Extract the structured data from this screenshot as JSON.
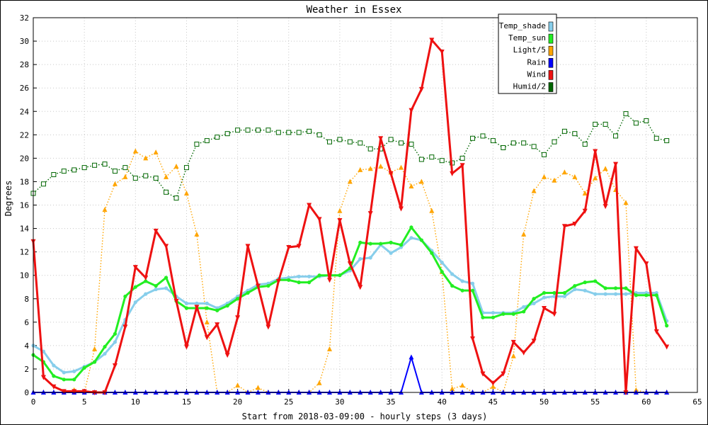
{
  "chart_data": {
    "type": "line",
    "title": "Weather in Essex",
    "xlabel": "Start from 2018-03-09:00 - hourly steps (3 days)",
    "ylabel": "Degrees",
    "xlim": [
      0,
      65
    ],
    "ylim": [
      0,
      32
    ],
    "x_ticks": [
      0,
      5,
      10,
      15,
      20,
      25,
      30,
      35,
      40,
      45,
      50,
      55,
      60,
      65
    ],
    "y_ticks": [
      0,
      2,
      4,
      6,
      8,
      10,
      12,
      14,
      16,
      18,
      20,
      22,
      24,
      26,
      28,
      30,
      32
    ],
    "grid": true,
    "legend_position": "top-right",
    "series": [
      {
        "name": "Temp_shade",
        "color": "#87CEEB",
        "marker": "circle",
        "values": [
          4.0,
          3.5,
          2.3,
          1.7,
          1.8,
          2.2,
          2.6,
          3.3,
          4.3,
          6.2,
          7.7,
          8.4,
          8.8,
          8.9,
          8.2,
          7.6,
          7.6,
          7.6,
          7.2,
          7.6,
          8.2,
          8.7,
          9.2,
          9.3,
          9.7,
          9.8,
          9.9,
          9.9,
          9.9,
          10.0,
          10.0,
          10.4,
          11.4,
          11.5,
          12.6,
          11.9,
          12.4,
          13.2,
          13.0,
          12.1,
          11.1,
          10.1,
          9.5,
          9.3,
          6.8,
          6.8,
          6.8,
          6.8,
          7.3,
          7.6,
          8.1,
          8.2,
          8.2,
          8.8,
          8.7,
          8.4,
          8.4,
          8.4,
          8.4,
          8.5,
          8.5,
          8.5,
          6.1
        ]
      },
      {
        "name": "Temp_sun",
        "color": "#22EE22",
        "marker": "circle",
        "values": [
          3.2,
          2.6,
          1.4,
          1.1,
          1.1,
          2.1,
          2.6,
          3.9,
          5.0,
          8.2,
          9.0,
          9.5,
          9.1,
          9.8,
          7.8,
          7.2,
          7.2,
          7.2,
          7.0,
          7.4,
          8.0,
          8.5,
          9.0,
          9.1,
          9.6,
          9.6,
          9.4,
          9.4,
          10.0,
          10.0,
          10.0,
          10.6,
          12.8,
          12.7,
          12.7,
          12.8,
          12.6,
          14.1,
          13.0,
          11.9,
          10.3,
          9.1,
          8.7,
          8.7,
          6.4,
          6.4,
          6.7,
          6.7,
          6.9,
          8.0,
          8.5,
          8.5,
          8.5,
          9.1,
          9.4,
          9.5,
          8.9,
          8.9,
          8.9,
          8.3,
          8.3,
          8.3,
          5.7
        ]
      },
      {
        "name": "Light/5",
        "color": "#FFA500",
        "marker": "triangle",
        "dotted": true,
        "values": [
          0,
          0,
          0,
          0,
          0.2,
          0,
          3.7,
          15.6,
          17.8,
          18.4,
          20.6,
          20.0,
          20.5,
          18.4,
          19.3,
          17.0,
          13.5,
          6.0,
          0,
          0,
          0.6,
          0,
          0.4,
          0,
          0,
          0,
          0,
          0,
          0.8,
          3.7,
          15.5,
          18.0,
          19.0,
          19.1,
          19.3,
          18.8,
          19.2,
          17.6,
          18.0,
          15.5,
          10.3,
          0.3,
          0.6,
          0,
          0,
          0.5,
          0,
          3.1,
          13.5,
          17.2,
          18.4,
          18.1,
          18.8,
          18.4,
          17.0,
          18.3,
          19.1,
          17.3,
          16.2,
          0.2,
          0,
          0,
          0
        ]
      },
      {
        "name": "Rain",
        "color": "#0000FF",
        "marker": "triangle",
        "values": [
          0,
          0,
          0,
          0,
          0,
          0,
          0,
          0,
          0,
          0,
          0,
          0,
          0,
          0,
          0,
          0,
          0,
          0,
          0,
          0,
          0,
          0,
          0,
          0,
          0,
          0,
          0,
          0,
          0,
          0,
          0,
          0,
          0,
          0,
          0,
          0,
          0,
          3.0,
          0,
          0,
          0,
          0,
          0,
          0,
          0,
          0,
          0,
          0,
          0,
          0,
          0,
          0,
          0,
          0,
          0,
          0,
          0,
          0,
          0,
          0,
          0,
          0,
          0
        ]
      },
      {
        "name": "Wind",
        "color": "#EE1111",
        "marker": "triangle-down",
        "values": [
          12.9,
          1.3,
          0.5,
          0.1,
          0.1,
          0.1,
          0,
          0,
          2.3,
          5.6,
          10.7,
          9.8,
          13.8,
          12.5,
          7.8,
          3.9,
          7.3,
          4.7,
          5.8,
          3.2,
          6.4,
          12.5,
          9.1,
          5.6,
          9.5,
          12.4,
          12.5,
          16.0,
          14.8,
          9.6,
          14.7,
          11.0,
          9.0,
          15.3,
          21.7,
          18.7,
          15.7,
          24.1,
          25.9,
          30.1,
          29.1,
          18.7,
          19.4,
          4.6,
          1.6,
          0.8,
          1.6,
          4.3,
          3.4,
          4.4,
          7.2,
          6.7,
          14.2,
          14.4,
          15.5,
          20.6,
          15.9,
          19.5,
          0,
          12.3,
          11.0,
          5.2,
          3.9
        ]
      },
      {
        "name": "Humid/2",
        "color": "#006600",
        "marker": "square",
        "dotted": true,
        "values": [
          17.0,
          17.8,
          18.6,
          18.9,
          19.0,
          19.2,
          19.4,
          19.5,
          18.9,
          19.2,
          18.3,
          18.5,
          18.3,
          17.1,
          16.6,
          19.2,
          21.2,
          21.5,
          21.8,
          22.1,
          22.4,
          22.4,
          22.4,
          22.4,
          22.2,
          22.2,
          22.2,
          22.3,
          22.0,
          21.4,
          21.6,
          21.4,
          21.3,
          20.8,
          20.8,
          21.6,
          21.3,
          21.2,
          19.9,
          20.1,
          19.8,
          19.6,
          20.0,
          21.7,
          21.9,
          21.5,
          20.9,
          21.3,
          21.3,
          21.0,
          20.3,
          21.4,
          22.3,
          22.1,
          21.2,
          22.9,
          22.9,
          21.9,
          23.8,
          23.0,
          23.2,
          21.7,
          21.5
        ]
      }
    ]
  }
}
